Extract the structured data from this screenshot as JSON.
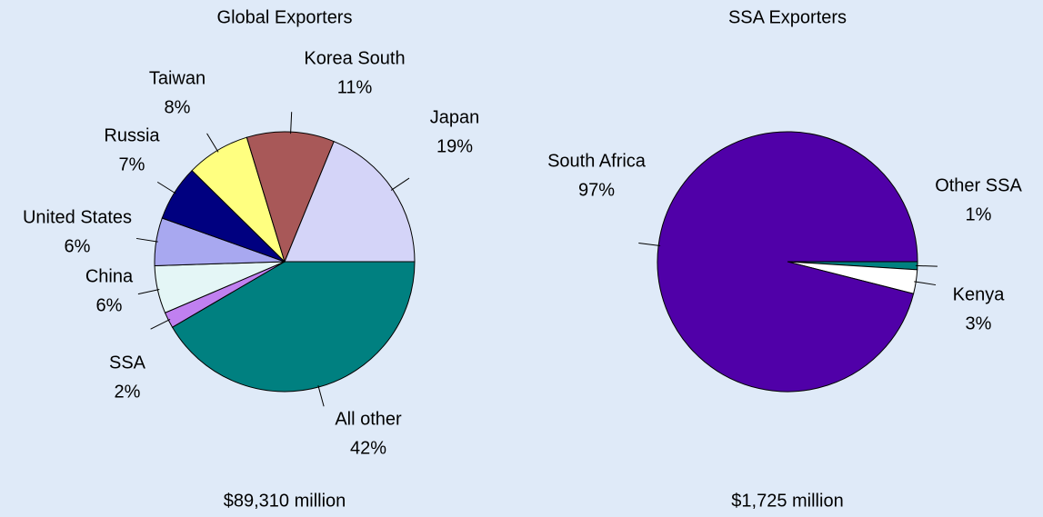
{
  "chart_data": [
    {
      "type": "pie",
      "title": "Global Exporters",
      "total": "$89,310 million",
      "categories": [
        "All other",
        "SSA",
        "China",
        "United States",
        "Russia",
        "Taiwan",
        "Korea South",
        "Japan"
      ],
      "values": [
        42,
        2,
        6,
        6,
        7,
        8,
        11,
        19
      ],
      "value_labels": [
        "42%",
        "2%",
        "6%",
        "6%",
        "7%",
        "8%",
        "11%",
        "19%"
      ],
      "colors": [
        "#008080",
        "#c080f0",
        "#e4f6f6",
        "#a8a8f0",
        "#000080",
        "#ffff80",
        "#a85858",
        "#d4d4f8"
      ]
    },
    {
      "type": "pie",
      "title": "SSA Exporters",
      "total": "$1,725 million",
      "categories": [
        "Other SSA",
        "Kenya",
        "South Africa"
      ],
      "values": [
        1,
        3,
        97
      ],
      "value_labels": [
        "1%",
        "3%",
        "97%"
      ],
      "colors": [
        "#008080",
        "#ffffff",
        "#5000a8"
      ]
    }
  ]
}
